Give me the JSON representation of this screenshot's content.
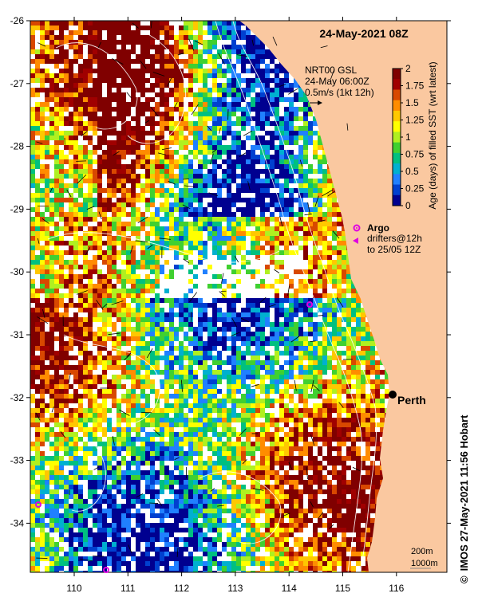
{
  "map": {
    "title": "24-May-2021 08Z",
    "model": {
      "name": "NRT00 GSL",
      "time": "24-May 06:00Z",
      "scale": "0.5m/s (1kt 12h)"
    },
    "colorbar": {
      "label": "Age (days) of filled SST (wrt latest)",
      "ticks": [
        "2",
        "1.75",
        "1.5",
        "1.25",
        "1",
        "0.75",
        "0.5",
        "0.25",
        "0"
      ],
      "colors": [
        "#800000",
        "#a00000",
        "#d84800",
        "#ff8c00",
        "#ffc800",
        "#ffff00",
        "#b0f020",
        "#40d030",
        "#00c080",
        "#00b0d0",
        "#2080ff",
        "#0040d0",
        "#000090"
      ]
    },
    "legend": {
      "argo_label": "Argo",
      "drifters_label": "drifters@12h",
      "drifters_sub": "to 25/05 12Z"
    },
    "city": "Perth",
    "contours": [
      "200m",
      "1000m"
    ],
    "lat_ticks": [
      "-26",
      "-27",
      "-28",
      "-29",
      "-30",
      "-31",
      "-32",
      "-33",
      "-34"
    ],
    "lon_ticks": [
      "110",
      "111",
      "112",
      "113",
      "114",
      "115",
      "116"
    ],
    "credit_symbol": "©",
    "credit": "IMOS 27-May-2021 11:56 Hobart",
    "colors": {
      "land": "#fac8a0",
      "argo": "#e000e0",
      "no_data": "#ffffff"
    }
  }
}
